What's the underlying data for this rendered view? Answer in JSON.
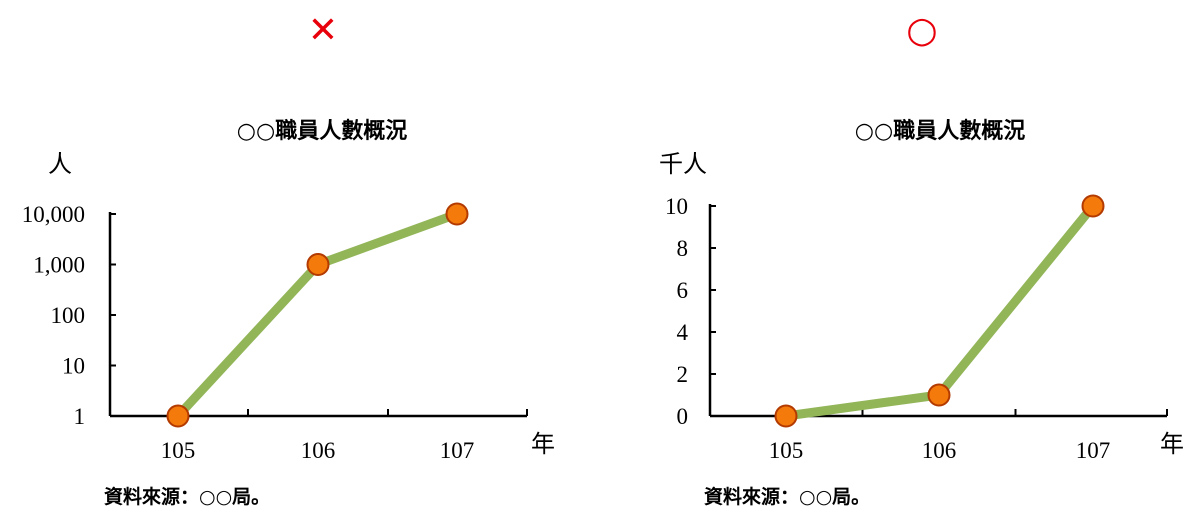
{
  "panels": [
    {
      "mark": "✕",
      "mark_color": "#e8000b",
      "chart_data": {
        "type": "line",
        "title": "○○職員人數概況",
        "ylabel": "人",
        "xlabel": "年",
        "categories": [
          "105",
          "106",
          "107"
        ],
        "values": [
          1,
          1000,
          10000
        ],
        "y_scale": "log",
        "ylim": [
          1,
          10000
        ],
        "y_ticks": [
          1,
          10,
          100,
          1000,
          10000
        ],
        "y_tick_labels": [
          "1",
          "10",
          "100",
          "1,000",
          "10,000"
        ],
        "line_color": "#92b558",
        "marker_color": "#f47a0c",
        "marker_edge_color": "#b33a00"
      },
      "source": "資料來源：○○局。"
    },
    {
      "mark": "○",
      "mark_color": "#e8000b",
      "chart_data": {
        "type": "line",
        "title": "○○職員人數概況",
        "ylabel": "千人",
        "xlabel": "年",
        "categories": [
          "105",
          "106",
          "107"
        ],
        "values": [
          0,
          1,
          10
        ],
        "y_scale": "linear",
        "ylim": [
          0,
          10
        ],
        "y_ticks": [
          0,
          2,
          4,
          6,
          8,
          10
        ],
        "y_tick_labels": [
          "0",
          "2",
          "4",
          "6",
          "8",
          "10"
        ],
        "line_color": "#92b558",
        "marker_color": "#f47a0c",
        "marker_edge_color": "#b33a00"
      },
      "source": "資料來源：○○局。"
    }
  ]
}
